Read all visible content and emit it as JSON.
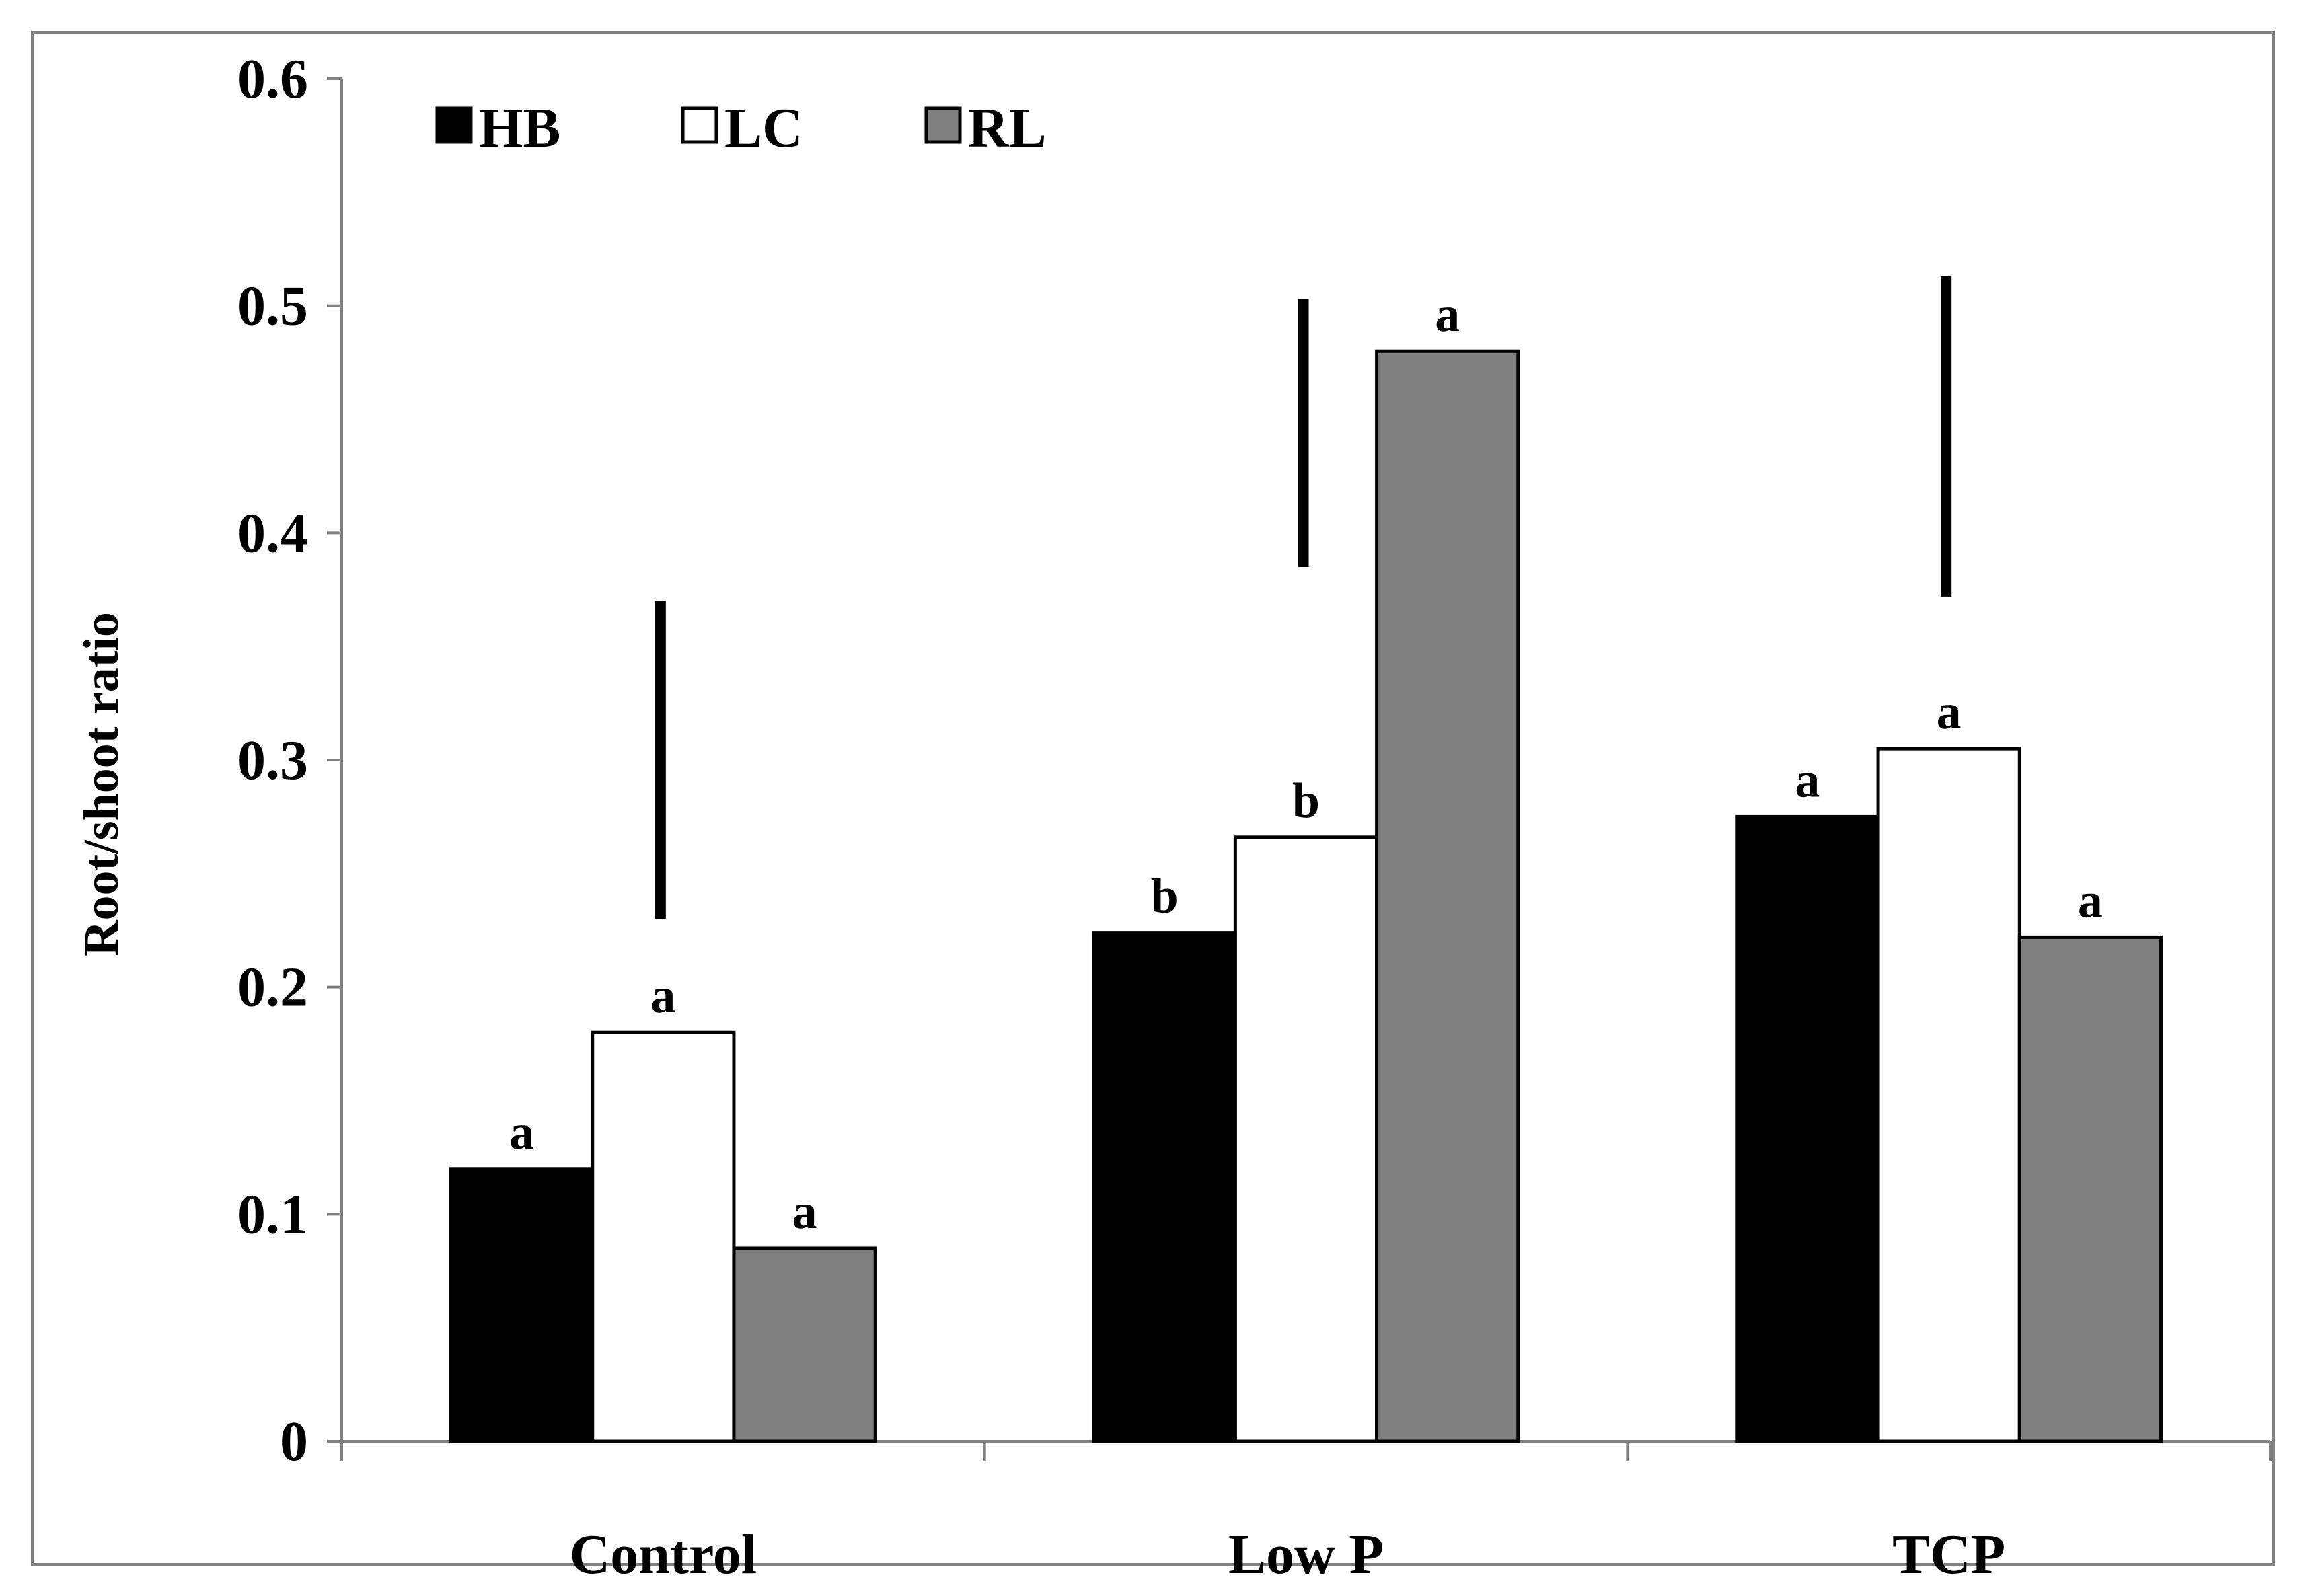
{
  "chart_data": {
    "type": "bar",
    "title": "",
    "xlabel": "",
    "ylabel": "Root/shoot ratio",
    "ylim": [
      0,
      0.6
    ],
    "yticks": [
      "0",
      "0.1",
      "0.2",
      "0.3",
      "0.4",
      "0.5",
      "0.6"
    ],
    "ytick_values": [
      0,
      0.1,
      0.2,
      0.3,
      0.4,
      0.5,
      0.6
    ],
    "categories": [
      "Control",
      "Low P",
      "TCP"
    ],
    "legend_position": "top-left",
    "series": [
      {
        "name": "HB",
        "color": "#000000",
        "values": [
          0.12,
          0.224,
          0.275
        ],
        "letters": [
          "a",
          "b",
          "a"
        ]
      },
      {
        "name": "LC",
        "color": "#ffffff",
        "values": [
          0.18,
          0.266,
          0.305
        ],
        "letters": [
          "a",
          "b",
          "a"
        ]
      },
      {
        "name": "RL",
        "color": "#808080",
        "values": [
          0.085,
          0.48,
          0.222
        ],
        "letters": [
          "a",
          "a",
          "a"
        ]
      }
    ],
    "lsd_bars": [
      {
        "category": "Control",
        "low": 0.23,
        "high": 0.37
      },
      {
        "category": "Low P",
        "low": 0.385,
        "high": 0.503
      },
      {
        "category": "TCP",
        "low": 0.372,
        "high": 0.513
      }
    ]
  }
}
